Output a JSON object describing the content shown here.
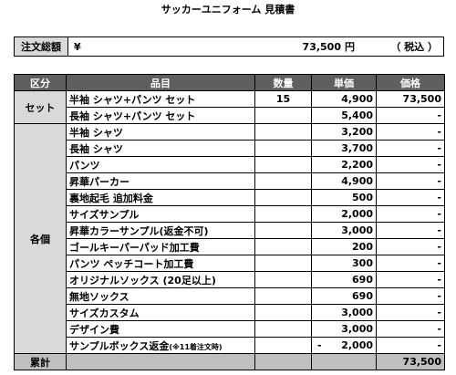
{
  "title": "サッカーユニフォーム 見積書",
  "total": {
    "label": "注文総額",
    "currency": "¥",
    "amount": "73,500",
    "unit": "円",
    "tax_note": "（ 税込 ）"
  },
  "headers": [
    "区分",
    "品目",
    "数量",
    "単価",
    "価格"
  ],
  "set": {
    "category": "セット",
    "rows": [
      {
        "item": "半袖 シャツ+パンツ セット",
        "qty": "15",
        "price": "4,900",
        "total": "73,500"
      },
      {
        "item": "長袖 シャツ+パンツ セット",
        "qty": "",
        "price": "5,400",
        "total": "-"
      }
    ]
  },
  "individual": {
    "category": "各個",
    "rows": [
      {
        "item": "半袖 シャツ",
        "qty": "",
        "price": "3,200",
        "total": "-"
      },
      {
        "item": "長袖 シャツ",
        "qty": "",
        "price": "3,700",
        "total": "-"
      },
      {
        "item": "パンツ",
        "qty": "",
        "price": "2,200",
        "total": "-"
      },
      {
        "item": "昇華パーカー",
        "qty": "",
        "price": "4,900",
        "total": "-"
      },
      {
        "item": "裏地起毛 追加料金",
        "qty": "",
        "price": "500",
        "total": "-"
      },
      {
        "item": "サイズサンプル",
        "qty": "",
        "price": "2,000",
        "total": "-"
      },
      {
        "item": "昇華カラーサンプル(返金不可)",
        "qty": "",
        "price": "3,000",
        "total": "-"
      },
      {
        "item": "ゴールキーパーパッド加工費",
        "qty": "",
        "price": "200",
        "total": "-"
      },
      {
        "item": "パンツ ペッチコート加工費",
        "qty": "",
        "price": "300",
        "total": "-"
      },
      {
        "item": "オリジナルソックス (20足以上)",
        "qty": "",
        "price": "690",
        "total": "-"
      },
      {
        "item": "無地ソックス",
        "qty": "",
        "price": "690",
        "total": "-"
      },
      {
        "item": "サイズカスタム",
        "qty": "",
        "price": "3,000",
        "total": "-"
      },
      {
        "item": "デザイン費",
        "qty": "",
        "price": "3,000",
        "total": "-"
      }
    ],
    "refund_row": {
      "item": "サンプルボックス返金",
      "note": "(※11着注文時)",
      "qty": "",
      "sign": "-",
      "price": "2,000",
      "total": "-"
    }
  },
  "summary": {
    "label": "累計",
    "total": "73,500"
  }
}
